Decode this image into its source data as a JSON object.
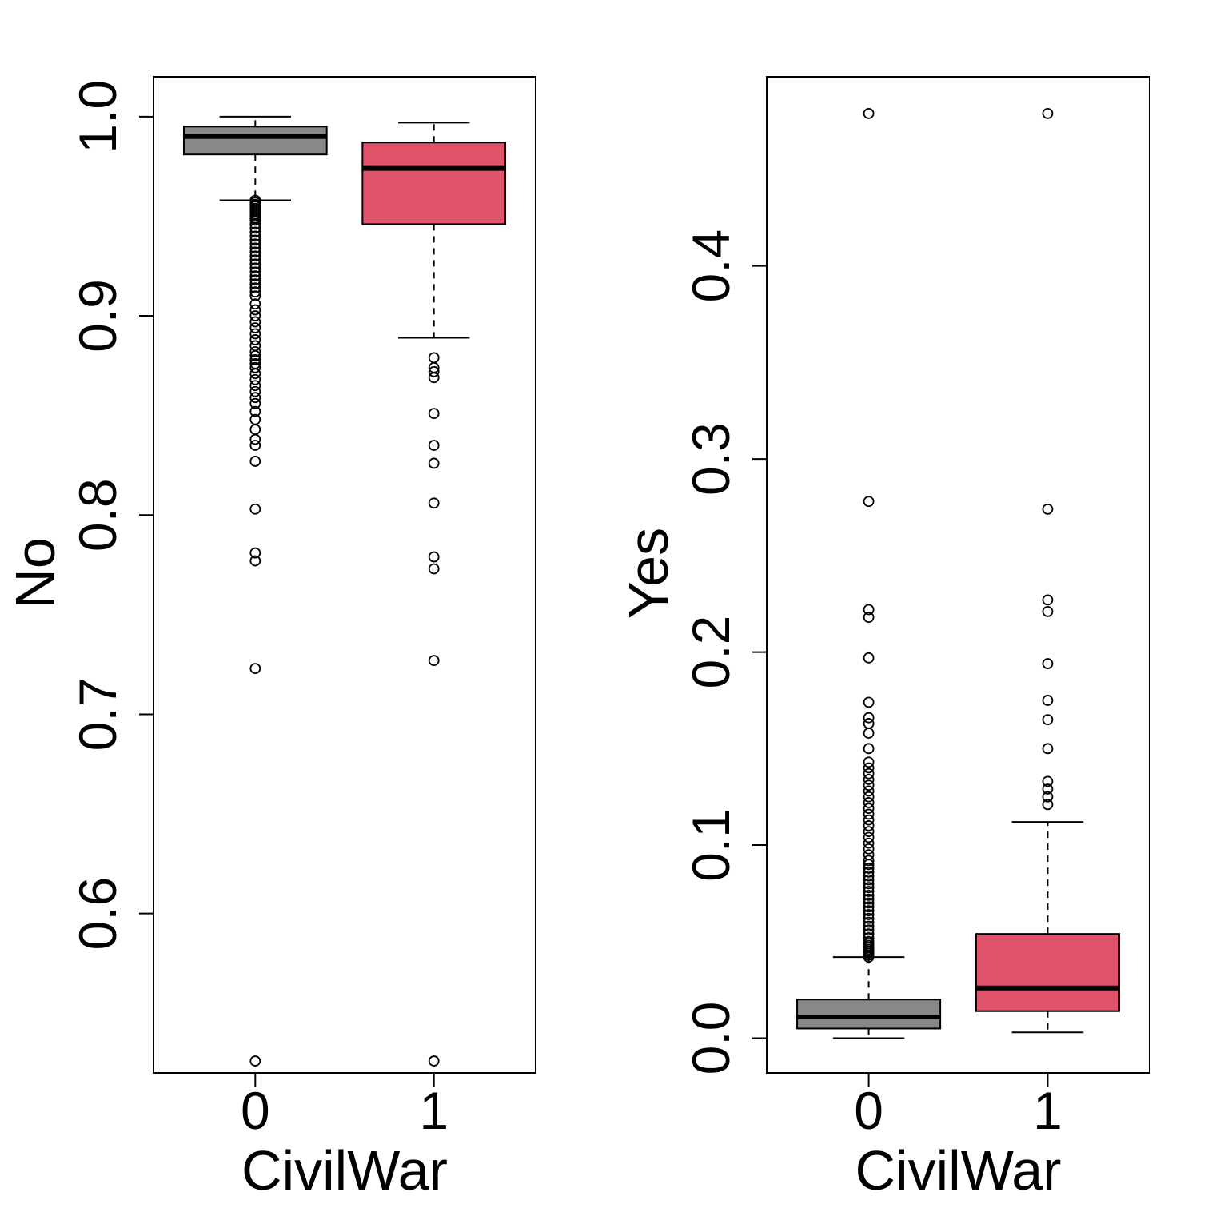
{
  "colors": {
    "group0": "#888888",
    "group1": "#DF536B",
    "ink": "#000000"
  },
  "chart_data": [
    {
      "type": "boxplot",
      "xlabel": "CivilWar",
      "ylabel": "No",
      "categories": [
        "0",
        "1"
      ],
      "ylim": [
        0.52,
        1.02
      ],
      "yticks": [
        0.6,
        0.7,
        0.8,
        0.9,
        1.0
      ],
      "ytick_labels": [
        "0.6",
        "0.7",
        "0.8",
        "0.9",
        "1.0"
      ],
      "grid": false,
      "boxes": [
        {
          "category": "0",
          "color": "#888888",
          "whisker_low": 0.958,
          "q1": 0.981,
          "median": 0.99,
          "q3": 0.995,
          "whisker_high": 1.0,
          "outliers": [
            0.958,
            0.957,
            0.956,
            0.955,
            0.954,
            0.953,
            0.952,
            0.951,
            0.95,
            0.949,
            0.948,
            0.946,
            0.944,
            0.942,
            0.94,
            0.938,
            0.936,
            0.934,
            0.932,
            0.93,
            0.928,
            0.926,
            0.924,
            0.922,
            0.92,
            0.918,
            0.916,
            0.914,
            0.912,
            0.91,
            0.906,
            0.903,
            0.9,
            0.897,
            0.894,
            0.891,
            0.888,
            0.885,
            0.882,
            0.88,
            0.878,
            0.876,
            0.874,
            0.871,
            0.868,
            0.865,
            0.862,
            0.859,
            0.856,
            0.852,
            0.848,
            0.843,
            0.838,
            0.835,
            0.827,
            0.803,
            0.781,
            0.777,
            0.723,
            0.526
          ]
        },
        {
          "category": "1",
          "color": "#DF536B",
          "whisker_low": 0.889,
          "q1": 0.946,
          "median": 0.974,
          "q3": 0.987,
          "whisker_high": 0.997,
          "outliers": [
            0.879,
            0.874,
            0.872,
            0.869,
            0.851,
            0.835,
            0.826,
            0.806,
            0.779,
            0.773,
            0.727,
            0.526
          ]
        }
      ]
    },
    {
      "type": "boxplot",
      "xlabel": "CivilWar",
      "ylabel": "Yes",
      "categories": [
        "0",
        "1"
      ],
      "ylim": [
        -0.018,
        0.498
      ],
      "yticks": [
        0.0,
        0.1,
        0.2,
        0.3,
        0.4
      ],
      "ytick_labels": [
        "0.0",
        "0.1",
        "0.2",
        "0.3",
        "0.4"
      ],
      "grid": false,
      "boxes": [
        {
          "category": "0",
          "color": "#888888",
          "whisker_low": 0.0,
          "q1": 0.005,
          "median": 0.011,
          "q3": 0.02,
          "whisker_high": 0.042,
          "outliers": [
            0.042,
            0.043,
            0.044,
            0.045,
            0.046,
            0.047,
            0.048,
            0.049,
            0.05,
            0.052,
            0.054,
            0.056,
            0.058,
            0.06,
            0.062,
            0.064,
            0.066,
            0.068,
            0.07,
            0.072,
            0.074,
            0.076,
            0.078,
            0.08,
            0.082,
            0.084,
            0.086,
            0.088,
            0.09,
            0.092,
            0.095,
            0.098,
            0.101,
            0.104,
            0.107,
            0.11,
            0.113,
            0.116,
            0.119,
            0.122,
            0.125,
            0.128,
            0.131,
            0.134,
            0.137,
            0.14,
            0.143,
            0.15,
            0.158,
            0.163,
            0.166,
            0.174,
            0.197,
            0.218,
            0.222,
            0.278,
            0.479
          ]
        },
        {
          "category": "1",
          "color": "#DF536B",
          "whisker_low": 0.003,
          "q1": 0.014,
          "median": 0.026,
          "q3": 0.054,
          "whisker_high": 0.112,
          "outliers": [
            0.121,
            0.125,
            0.129,
            0.133,
            0.15,
            0.165,
            0.175,
            0.194,
            0.221,
            0.227,
            0.274,
            0.479
          ]
        }
      ]
    }
  ]
}
